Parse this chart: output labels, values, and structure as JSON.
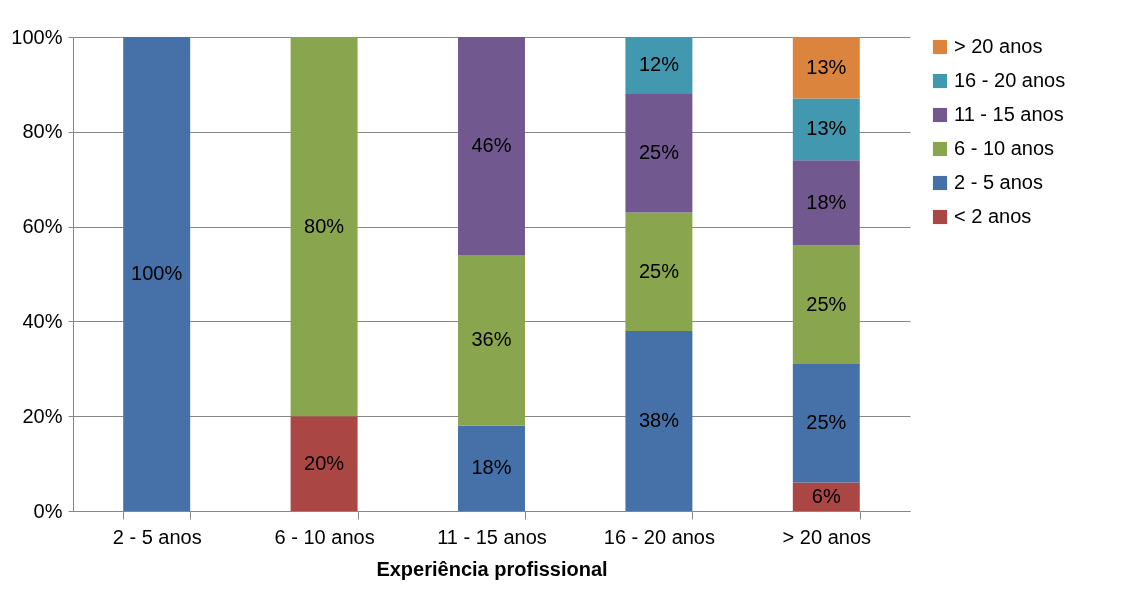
{
  "chart_data": {
    "type": "bar",
    "stacked": true,
    "xlabel": "Experiência profissional",
    "categories": [
      "2 - 5 anos",
      "6 - 10 anos",
      "11 - 15 anos",
      "16 - 20 anos",
      "> 20 anos"
    ],
    "series": [
      {
        "name": "< 2 anos",
        "color": "#aa4644",
        "values": [
          null,
          20,
          null,
          null,
          6
        ],
        "value_labels": [
          null,
          "20%",
          null,
          null,
          "6%"
        ]
      },
      {
        "name": "2 - 5 anos",
        "color": "#4571a8",
        "values": [
          100,
          null,
          18,
          38,
          25
        ],
        "value_labels": [
          "100%",
          null,
          "18%",
          "38%",
          "25%"
        ]
      },
      {
        "name": "6 - 10 anos",
        "color": "#89a54e",
        "values": [
          null,
          80,
          36,
          25,
          25
        ],
        "value_labels": [
          null,
          "80%",
          "36%",
          "25%",
          "25%"
        ]
      },
      {
        "name": "11 - 15 anos",
        "color": "#71588f",
        "values": [
          null,
          null,
          46,
          25,
          18
        ],
        "value_labels": [
          null,
          null,
          "46%",
          "25%",
          "18%"
        ]
      },
      {
        "name": "16 - 20 anos",
        "color": "#4198af",
        "values": [
          null,
          null,
          null,
          12,
          13
        ],
        "value_labels": [
          null,
          null,
          null,
          "12%",
          "13%"
        ]
      },
      {
        "name": "> 20 anos",
        "color": "#db843d",
        "values": [
          null,
          null,
          null,
          null,
          13
        ],
        "value_labels": [
          null,
          null,
          null,
          null,
          "13%"
        ]
      }
    ],
    "ylim": [
      0,
      100
    ],
    "yticks": [
      {
        "value": 0,
        "label": "0%"
      },
      {
        "value": 20,
        "label": "20%"
      },
      {
        "value": 40,
        "label": "40%"
      },
      {
        "value": 60,
        "label": "60%"
      },
      {
        "value": 80,
        "label": "80%"
      },
      {
        "value": 100,
        "label": "100%"
      }
    ],
    "grid": "y",
    "legend": "right"
  }
}
